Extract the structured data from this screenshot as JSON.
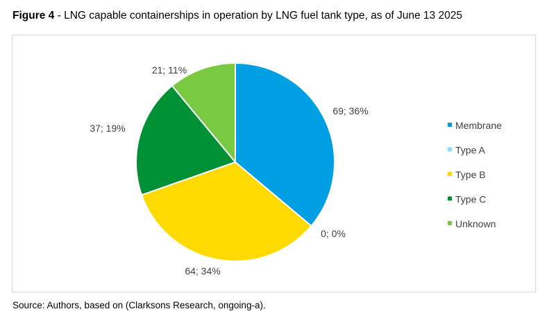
{
  "title_prefix": "Figure 4",
  "title_rest": " - LNG capable containerships in operation by LNG fuel tank type, as of June 13 2025",
  "source": "Source: Authors, based on (Clarksons Research, ongoing-a).",
  "chart_data": {
    "type": "pie",
    "title": "LNG capable containerships in operation by LNG fuel tank type, as of June 13 2025",
    "start": "top, clockwise",
    "legend_position": "right",
    "slices": [
      {
        "name": "Membrane",
        "value": 69,
        "label": "69; 36%",
        "color": "#009FE3"
      },
      {
        "name": "Type A",
        "value": 0,
        "label": "0; 0%",
        "color": "#8ED8F8"
      },
      {
        "name": "Type B",
        "value": 64,
        "label": "64; 34%",
        "color": "#FFDA00"
      },
      {
        "name": "Type C",
        "value": 37,
        "label": "37; 19%",
        "color": "#009036"
      },
      {
        "name": "Unknown",
        "value": 21,
        "label": "21; 11%",
        "color": "#7AC943"
      }
    ]
  }
}
